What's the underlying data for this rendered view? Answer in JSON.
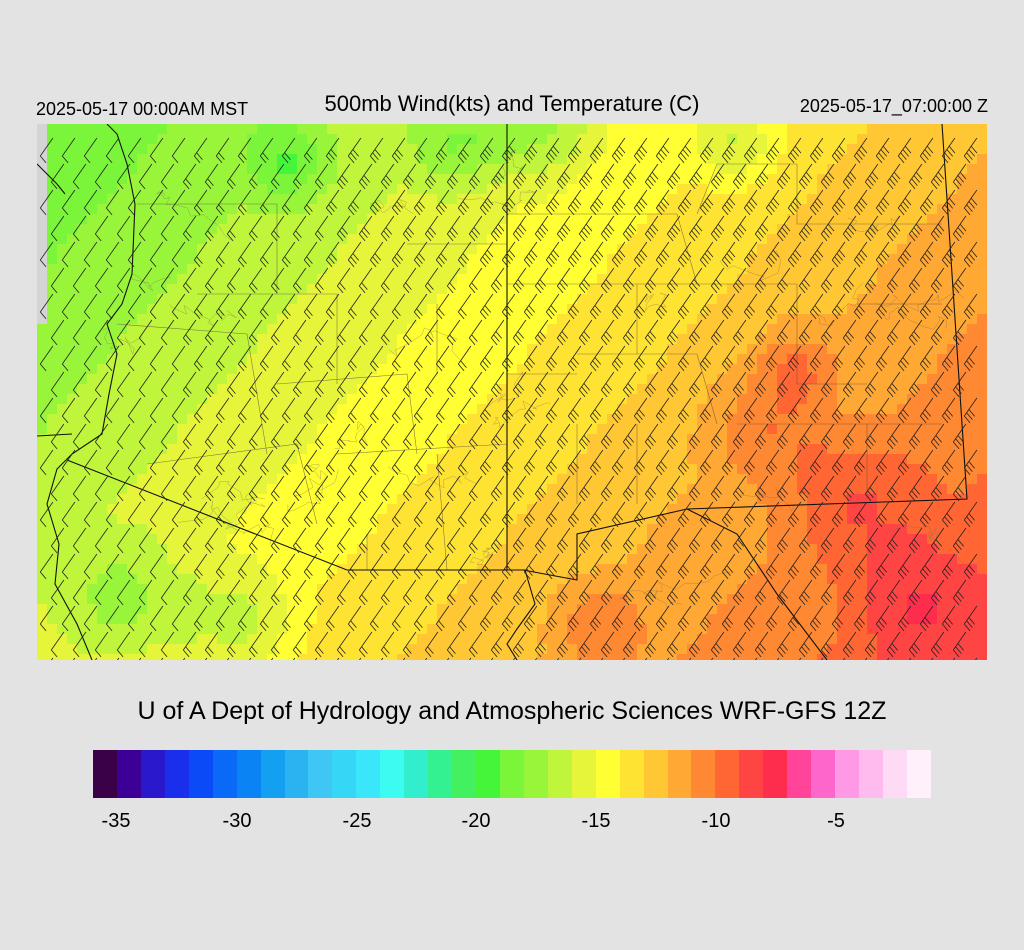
{
  "header": {
    "left_time": "2025-05-17 00:00AM MST",
    "title": "500mb Wind(kts) and Temperature (C)",
    "right_time": "2025-05-17_07:00:00 Z"
  },
  "map": {
    "variable": "500mb temperature (C) with wind barbs (kts)",
    "temperature_range_c": [
      -20,
      -7
    ],
    "wind_direction": "southwesterly"
  },
  "credit": "U of A Dept of Hydrology and Atmospheric Sciences WRF-GFS 12Z",
  "colorbar": {
    "colors": [
      "#3a0048",
      "#3d0096",
      "#2a19cc",
      "#1a2fec",
      "#0a4af7",
      "#0a6af7",
      "#0a84f5",
      "#14a0f0",
      "#2bb2f0",
      "#40c6f5",
      "#36d6f7",
      "#39e6fa",
      "#3cfbf1",
      "#33eecc",
      "#33f090",
      "#42f060",
      "#44f53a",
      "#7af53a",
      "#99f53a",
      "#bff53a",
      "#e6f53a",
      "#ffff33",
      "#ffe333",
      "#ffc733",
      "#ffa833",
      "#ff8833",
      "#ff6633",
      "#ff4444",
      "#ff2d4d",
      "#ff4499",
      "#ff66cc",
      "#ff99e6",
      "#ffbbee",
      "#ffdaf6",
      "#fff0fb"
    ],
    "tick_labels": [
      "-35",
      "-30",
      "-25",
      "-20",
      "-15",
      "-10",
      "-5"
    ]
  }
}
